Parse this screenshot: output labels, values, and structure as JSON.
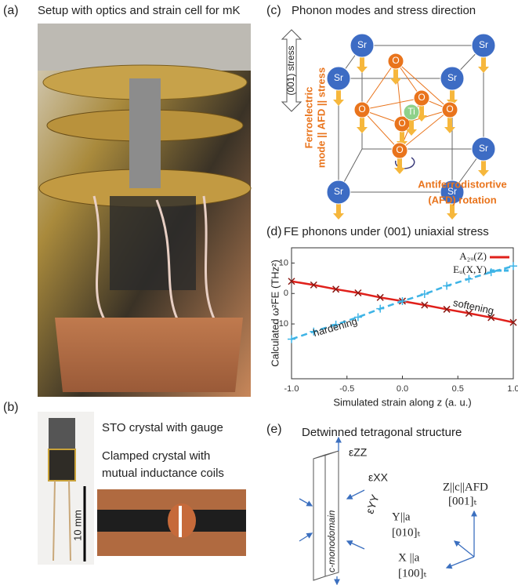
{
  "panels": {
    "a": {
      "label": "(a)",
      "title": "Setup with optics and strain cell for mK"
    },
    "b": {
      "label": "(b)",
      "caption1": "STO crystal with gauge",
      "caption2": "Clamped crystal with",
      "caption3": "mutual inductance coils",
      "scale": "10 mm"
    },
    "c": {
      "label": "(c)",
      "title": "Phonon modes and stress direction",
      "stress": "(001) stress",
      "mode1": "Ferroelectric",
      "mode2": "mode || AFD || stress",
      "rotation1": "Antiferrodistortive",
      "rotation2": "(AFD) rotation",
      "atoms": [
        "Sr",
        "Sr",
        "Sr",
        "Sr",
        "Sr",
        "Sr",
        "Sr",
        "O",
        "O",
        "O",
        "O",
        "O",
        "O",
        "Ti"
      ]
    },
    "e": {
      "label": "(e)",
      "title": "Detwinned tetragonal structure",
      "ezz": "εZZ",
      "exx": "εXX",
      "eyy": "εYY",
      "domain": "c-monodomain",
      "z1": "Z||c||AFD",
      "z2": "[001]ₜ",
      "y1": "Y||a",
      "y2": "[010]ₜ",
      "x1": "X ||a",
      "x2": "[100]ₜ"
    }
  },
  "chart_data": {
    "type": "line",
    "label": "(d)",
    "title": "FE phonons under (001) uniaxial stress",
    "xlabel": "Simulated strain along z (a. u.)",
    "ylabel": "Calculated ω²FE (THz²)",
    "x": [
      -1,
      -0.8,
      -0.6,
      -0.4,
      -0.2,
      0,
      0.2,
      0.4,
      0.6,
      0.8,
      1
    ],
    "series": [
      {
        "name": "A₂ᵤ(Z)",
        "color": "#e0201b",
        "dash": false,
        "marker": "x",
        "values": [
          4,
          2.8,
          1.4,
          0.2,
          -1.3,
          -2.5,
          -3.8,
          -5.2,
          -6.5,
          -7.9,
          -9.5
        ]
      },
      {
        "name": "Eᵤ(X,Y)",
        "color": "#3eb4e6",
        "dash": true,
        "marker": "+",
        "values": [
          -15,
          -12.5,
          -10.2,
          -7.8,
          -5,
          -2.5,
          -0.2,
          2.5,
          4.8,
          7,
          9
        ]
      }
    ],
    "annotations": [
      "hardening",
      "softening"
    ],
    "xlim": [
      -1,
      1
    ],
    "ylim": [
      -28,
      15
    ],
    "xticks": [
      {
        "value": -1,
        "label": "-1.0"
      },
      -0.5,
      {
        "value": 0,
        "label": "0.0"
      },
      0.5,
      {
        "value": 1,
        "label": "1.0"
      }
    ],
    "yticks": [
      -10,
      0,
      10
    ],
    "legend": "top-right"
  }
}
